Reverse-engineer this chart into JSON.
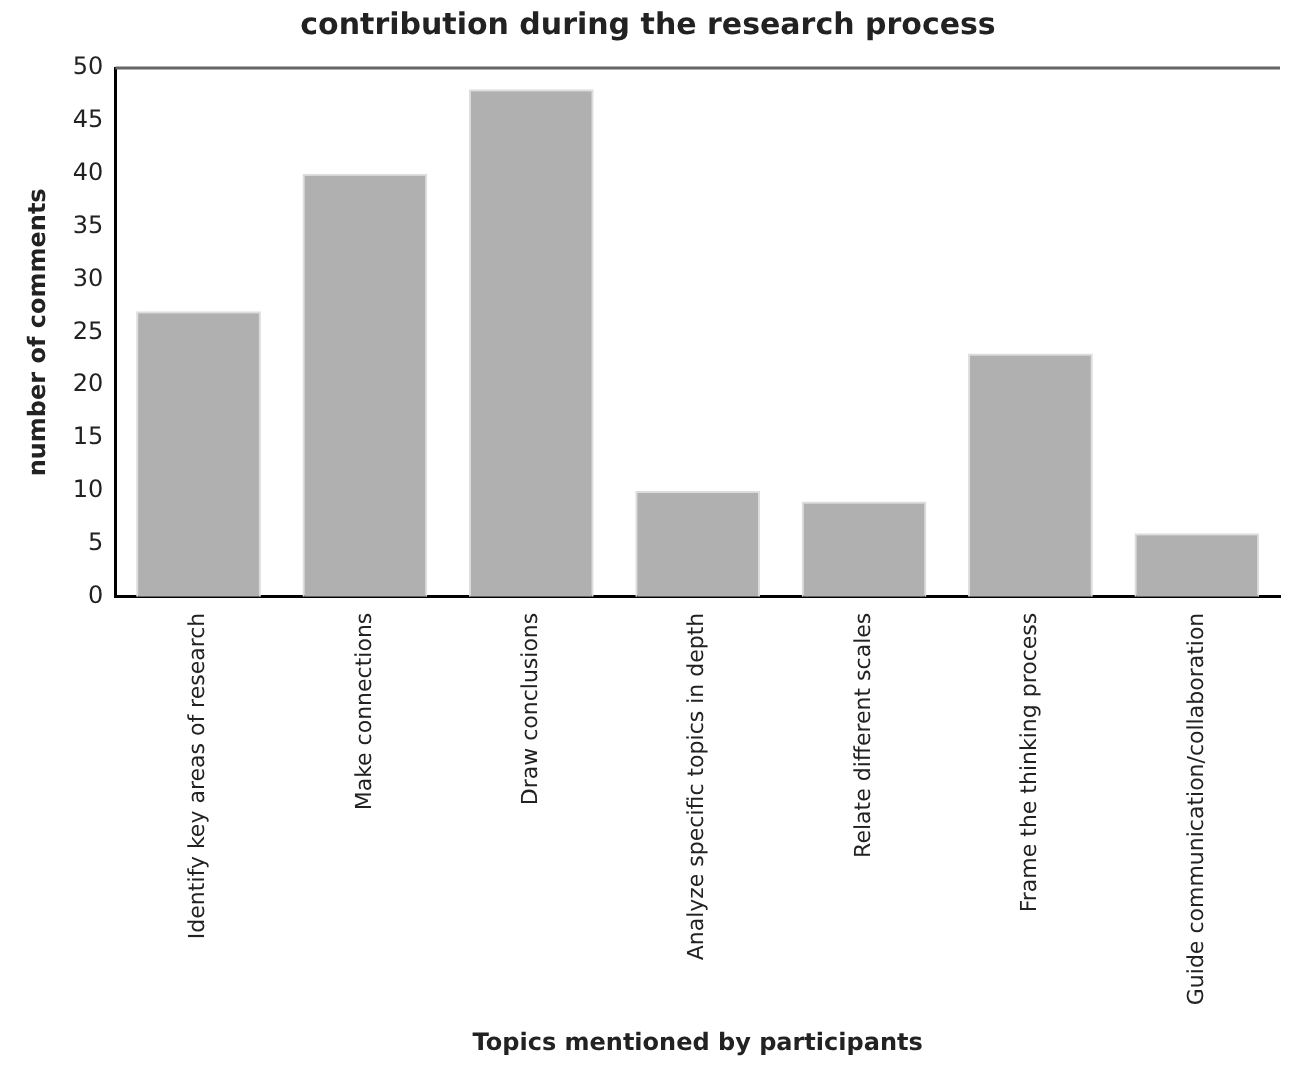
{
  "chart_data": {
    "type": "bar",
    "title": "contribution during the research process",
    "xlabel": "Topics mentioned by participants",
    "ylabel": "number of comments",
    "categories": [
      "Identify key areas of research",
      "Make connections",
      "Draw conclusions",
      "Analyze specific topics in depth",
      "Relate different scales",
      "Frame the thinking process",
      "Guide communication/collaboration"
    ],
    "values": [
      27,
      40,
      48,
      10,
      9,
      23,
      6
    ],
    "color": "#b0b0b0",
    "ylim": [
      0,
      50
    ],
    "yticks": [
      0,
      5,
      10,
      15,
      20,
      25,
      30,
      35,
      40,
      45,
      50
    ],
    "grid": false,
    "legend": false
  }
}
